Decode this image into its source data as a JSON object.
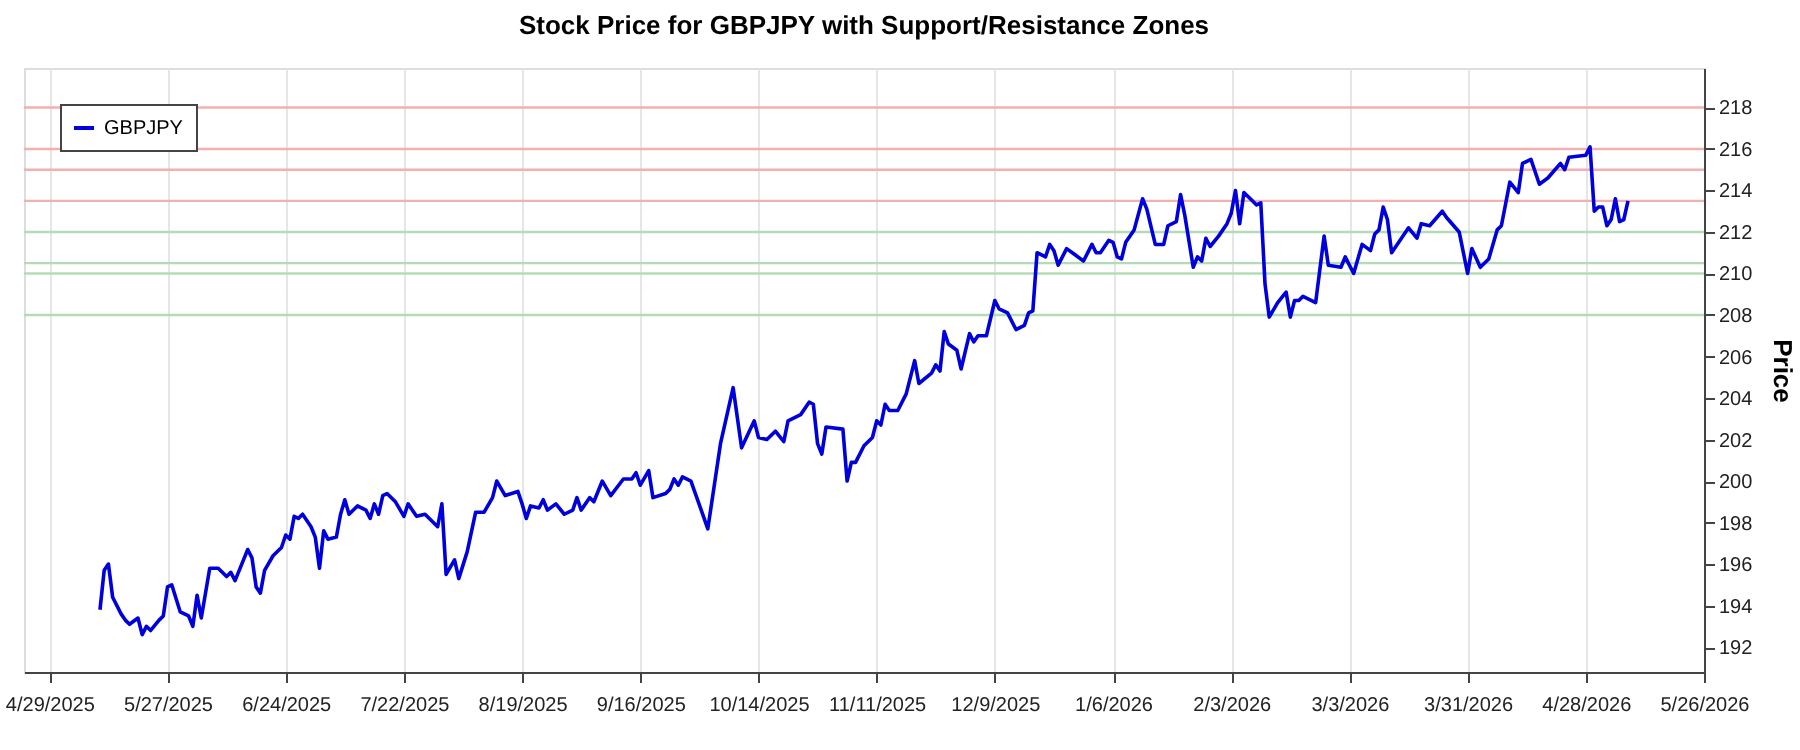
{
  "chart_data": {
    "type": "line",
    "title": "Stock Price for GBPJPY with Support/Resistance Zones",
    "ylabel": "Price",
    "x": [
      "2025-05-11",
      "2025-05-12",
      "2025-05-13",
      "2025-05-14",
      "2025-05-16",
      "2025-05-17",
      "2025-05-18",
      "2025-05-20",
      "2025-05-21",
      "2025-05-22",
      "2025-05-23",
      "2025-05-25",
      "2025-05-26",
      "2025-05-27",
      "2025-05-28",
      "2025-05-30",
      "2025-06-01",
      "2025-06-02",
      "2025-06-03",
      "2025-06-04",
      "2025-06-06",
      "2025-06-08",
      "2025-06-10",
      "2025-06-11",
      "2025-06-12",
      "2025-06-14",
      "2025-06-15",
      "2025-06-16",
      "2025-06-17",
      "2025-06-18",
      "2025-06-19",
      "2025-06-21",
      "2025-06-23",
      "2025-06-24",
      "2025-06-25",
      "2025-06-26",
      "2025-06-27",
      "2025-06-28",
      "2025-06-30",
      "2025-07-01",
      "2025-07-02",
      "2025-07-03",
      "2025-07-04",
      "2025-07-06",
      "2025-07-07",
      "2025-07-08",
      "2025-07-09",
      "2025-07-11",
      "2025-07-13",
      "2025-07-14",
      "2025-07-15",
      "2025-07-16",
      "2025-07-17",
      "2025-07-18",
      "2025-07-20",
      "2025-07-22",
      "2025-07-23",
      "2025-07-25",
      "2025-07-27",
      "2025-07-30",
      "2025-07-31",
      "2025-08-01",
      "2025-08-03",
      "2025-08-04",
      "2025-08-06",
      "2025-08-08",
      "2025-08-10",
      "2025-08-12",
      "2025-08-13",
      "2025-08-15",
      "2025-08-18",
      "2025-08-19",
      "2025-08-20",
      "2025-08-21",
      "2025-08-23",
      "2025-08-24",
      "2025-08-25",
      "2025-08-27",
      "2025-08-29",
      "2025-08-31",
      "2025-09-01",
      "2025-09-02",
      "2025-09-04",
      "2025-09-05",
      "2025-09-07",
      "2025-09-09",
      "2025-09-12",
      "2025-09-14",
      "2025-09-15",
      "2025-09-16",
      "2025-09-18",
      "2025-09-19",
      "2025-09-22",
      "2025-09-23",
      "2025-09-24",
      "2025-09-25",
      "2025-09-26",
      "2025-09-28",
      "2025-10-02",
      "2025-10-05",
      "2025-10-08",
      "2025-10-10",
      "2025-10-13",
      "2025-10-14",
      "2025-10-16",
      "2025-10-18",
      "2025-10-20",
      "2025-10-21",
      "2025-10-24",
      "2025-10-26",
      "2025-10-27",
      "2025-10-28",
      "2025-10-29",
      "2025-10-30",
      "2025-11-03",
      "2025-11-04",
      "2025-11-05",
      "2025-11-06",
      "2025-11-08",
      "2025-11-10",
      "2025-11-11",
      "2025-11-12",
      "2025-11-13",
      "2025-11-14",
      "2025-11-16",
      "2025-11-18",
      "2025-11-20",
      "2025-11-21",
      "2025-11-24",
      "2025-11-25",
      "2025-11-26",
      "2025-11-27",
      "2025-11-28",
      "2025-11-30",
      "2025-12-01",
      "2025-12-03",
      "2025-12-04",
      "2025-12-05",
      "2025-12-07",
      "2025-12-09",
      "2025-12-10",
      "2025-12-12",
      "2025-12-14",
      "2025-12-16",
      "2025-12-17",
      "2025-12-18",
      "2025-12-19",
      "2025-12-21",
      "2025-12-22",
      "2025-12-23",
      "2025-12-24",
      "2025-12-26",
      "2025-12-28",
      "2025-12-30",
      "2026-01-01",
      "2026-01-02",
      "2026-01-03",
      "2026-01-05",
      "2026-01-06",
      "2026-01-07",
      "2026-01-08",
      "2026-01-09",
      "2026-01-11",
      "2026-01-13",
      "2026-01-14",
      "2026-01-16",
      "2026-01-18",
      "2026-01-19",
      "2026-01-21",
      "2026-01-22",
      "2026-01-23",
      "2026-01-25",
      "2026-01-26",
      "2026-01-27",
      "2026-01-28",
      "2026-01-29",
      "2026-01-31",
      "2026-02-02",
      "2026-02-03",
      "2026-02-04",
      "2026-02-05",
      "2026-02-06",
      "2026-02-08",
      "2026-02-09",
      "2026-02-10",
      "2026-02-11",
      "2026-02-12",
      "2026-02-14",
      "2026-02-16",
      "2026-02-17",
      "2026-02-18",
      "2026-02-19",
      "2026-02-20",
      "2026-02-23",
      "2026-02-25",
      "2026-02-26",
      "2026-03-01",
      "2026-03-02",
      "2026-03-04",
      "2026-03-06",
      "2026-03-08",
      "2026-03-09",
      "2026-03-10",
      "2026-03-11",
      "2026-03-12",
      "2026-03-13",
      "2026-03-17",
      "2026-03-19",
      "2026-03-20",
      "2026-03-22",
      "2026-03-25",
      "2026-03-26",
      "2026-03-29",
      "2026-03-31",
      "2026-04-01",
      "2026-04-03",
      "2026-04-05",
      "2026-04-07",
      "2026-04-08",
      "2026-04-10",
      "2026-04-12",
      "2026-04-13",
      "2026-04-15",
      "2026-04-17",
      "2026-04-19",
      "2026-04-22",
      "2026-04-23",
      "2026-04-24",
      "2026-04-28",
      "2026-04-29",
      "2026-04-30",
      "2026-05-01",
      "2026-05-02",
      "2026-05-03",
      "2026-05-04",
      "2026-05-05",
      "2026-05-06",
      "2026-05-07",
      "2026-05-08"
    ],
    "series": [
      {
        "name": "GBPJPY",
        "color": "#0000dd",
        "values": [
          193.8,
          195.7,
          196.0,
          194.4,
          193.6,
          193.3,
          193.1,
          193.4,
          192.6,
          193.0,
          192.8,
          193.3,
          193.5,
          194.9,
          195.0,
          193.7,
          193.5,
          193.0,
          194.5,
          193.4,
          195.8,
          195.8,
          195.4,
          195.6,
          195.2,
          196.2,
          196.7,
          196.3,
          194.9,
          194.6,
          195.7,
          196.4,
          196.8,
          197.4,
          197.2,
          198.3,
          198.2,
          198.4,
          197.8,
          197.3,
          195.8,
          197.6,
          197.2,
          197.3,
          198.4,
          199.1,
          198.4,
          198.8,
          198.6,
          198.2,
          198.9,
          198.4,
          199.3,
          199.4,
          199.0,
          198.3,
          198.9,
          198.3,
          198.4,
          197.8,
          198.9,
          195.5,
          196.2,
          195.3,
          196.6,
          198.5,
          198.5,
          199.2,
          200.0,
          199.3,
          199.5,
          198.9,
          198.2,
          198.8,
          198.7,
          199.1,
          198.6,
          198.9,
          198.4,
          198.6,
          199.2,
          198.6,
          199.2,
          199.0,
          200.0,
          199.3,
          200.1,
          200.1,
          200.4,
          199.8,
          200.5,
          199.2,
          199.4,
          199.6,
          200.1,
          199.8,
          200.2,
          200.0,
          197.7,
          201.8,
          204.5,
          201.6,
          202.9,
          202.1,
          202.0,
          202.4,
          201.9,
          202.9,
          203.2,
          203.8,
          203.7,
          201.8,
          201.3,
          202.6,
          202.5,
          200.0,
          200.9,
          200.9,
          201.7,
          202.1,
          202.9,
          202.7,
          203.7,
          203.4,
          203.4,
          204.2,
          205.8,
          204.7,
          205.2,
          205.6,
          205.3,
          207.2,
          206.6,
          206.3,
          205.4,
          207.1,
          206.7,
          207.0,
          207.0,
          208.7,
          208.3,
          208.1,
          207.3,
          207.5,
          208.1,
          208.2,
          211.0,
          210.8,
          211.4,
          211.1,
          210.4,
          211.2,
          210.9,
          210.6,
          211.4,
          211.0,
          211.0,
          211.6,
          211.5,
          210.8,
          210.7,
          211.5,
          212.1,
          213.6,
          213.1,
          211.4,
          211.4,
          212.3,
          212.5,
          213.8,
          212.8,
          210.3,
          210.8,
          210.6,
          211.7,
          211.3,
          211.8,
          212.4,
          212.9,
          214.0,
          212.4,
          213.9,
          213.5,
          213.3,
          213.4,
          209.5,
          207.9,
          208.6,
          209.1,
          207.9,
          208.7,
          208.7,
          208.9,
          208.6,
          211.8,
          210.4,
          210.3,
          210.8,
          210.0,
          211.4,
          211.1,
          211.9,
          212.1,
          213.2,
          212.6,
          211.0,
          212.2,
          211.7,
          212.4,
          212.3,
          213.0,
          212.7,
          212.0,
          210.0,
          211.2,
          210.3,
          210.7,
          212.1,
          212.3,
          214.4,
          213.9,
          215.3,
          215.5,
          214.3,
          214.6,
          215.3,
          215.0,
          215.6,
          215.7,
          216.1,
          213.0,
          213.2,
          213.2,
          212.3,
          212.6,
          213.6,
          212.5,
          212.6,
          213.5
        ]
      }
    ],
    "xlim": [
      "2025-04-23",
      "2026-05-26"
    ],
    "xticks": [
      {
        "value": "2025-04-29",
        "label": "4/29/2025"
      },
      {
        "value": "2025-05-27",
        "label": "5/27/2025"
      },
      {
        "value": "2025-06-24",
        "label": "6/24/2025"
      },
      {
        "value": "2025-07-22",
        "label": "7/22/2025"
      },
      {
        "value": "2025-08-19",
        "label": "8/19/2025"
      },
      {
        "value": "2025-09-16",
        "label": "9/16/2025"
      },
      {
        "value": "2025-10-14",
        "label": "10/14/2025"
      },
      {
        "value": "2025-11-11",
        "label": "11/11/2025"
      },
      {
        "value": "2025-12-09",
        "label": "12/9/2025"
      },
      {
        "value": "2026-01-06",
        "label": "1/6/2026"
      },
      {
        "value": "2026-02-03",
        "label": "2/3/2026"
      },
      {
        "value": "2026-03-03",
        "label": "3/3/2026"
      },
      {
        "value": "2026-03-31",
        "label": "3/31/2026"
      },
      {
        "value": "2026-04-28",
        "label": "4/28/2026"
      },
      {
        "value": "2026-05-26",
        "label": "5/26/2026"
      }
    ],
    "ylim": [
      190.8,
      219.9
    ],
    "yticks": [
      192,
      194,
      196,
      198,
      200,
      202,
      204,
      206,
      208,
      210,
      212,
      214,
      216,
      218
    ],
    "ref_lines": [
      {
        "axis": "y",
        "value": 218,
        "color": "#f4b0b0"
      },
      {
        "axis": "y",
        "value": 216,
        "color": "#f4b0b0"
      },
      {
        "axis": "y",
        "value": 215,
        "color": "#f4b0b0"
      },
      {
        "axis": "y",
        "value": 213.5,
        "color": "#f4b0b0"
      },
      {
        "axis": "y",
        "value": 212,
        "color": "#b4dcb4"
      },
      {
        "axis": "y",
        "value": 210.5,
        "color": "#b4dcb4"
      },
      {
        "axis": "y",
        "value": 210,
        "color": "#b4dcb4"
      },
      {
        "axis": "y",
        "value": 208,
        "color": "#b4dcb4"
      }
    ],
    "grid": "x",
    "legend": "top left",
    "line_style": "solid",
    "marker": "none"
  }
}
